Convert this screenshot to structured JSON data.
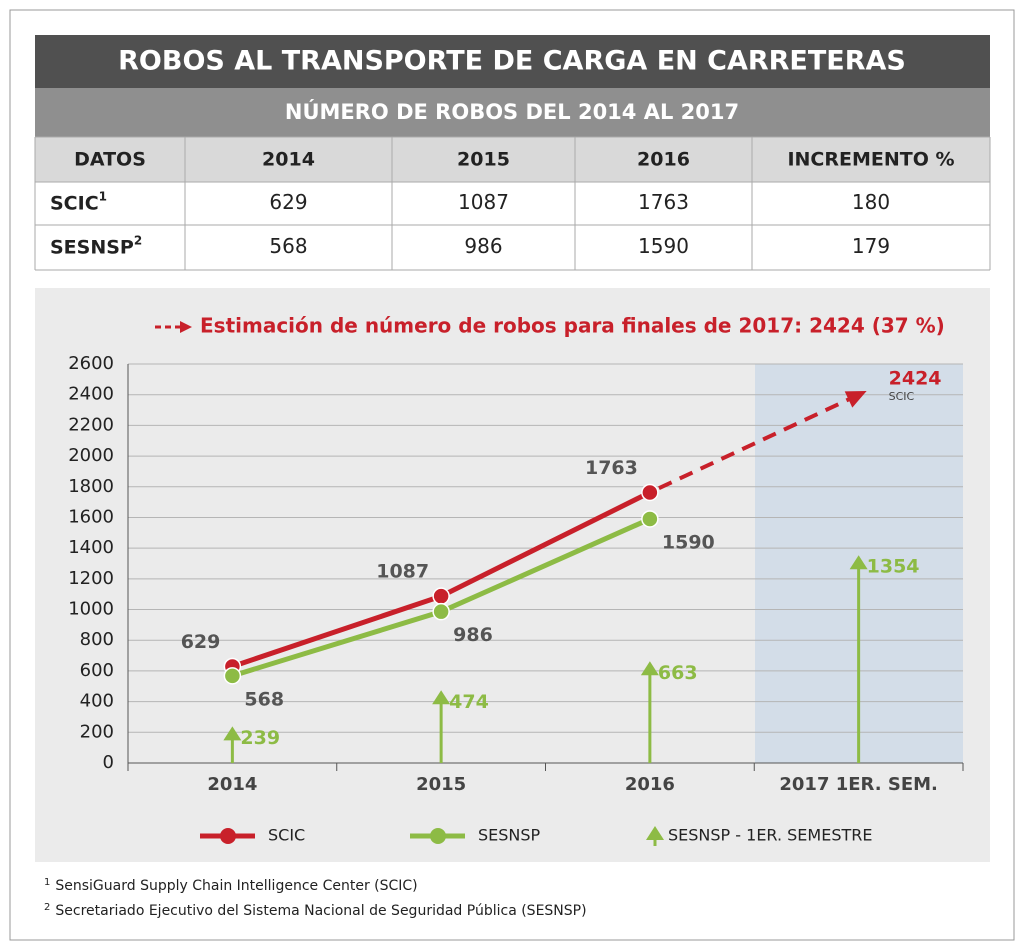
{
  "header": {
    "title": "ROBOS AL TRANSPORTE DE CARGA EN CARRETERAS",
    "subtitle": "NÚMERO DE ROBOS DEL 2014 AL 2017"
  },
  "table": {
    "columns": [
      "DATOS",
      "2014",
      "2015",
      "2016",
      "INCREMENTO %"
    ],
    "rows": [
      {
        "label": "SCIC",
        "note": "1",
        "cells": [
          629,
          1087,
          1763,
          180
        ]
      },
      {
        "label": "SESNSP",
        "note": "2",
        "cells": [
          568,
          986,
          1590,
          179
        ]
      }
    ]
  },
  "chart_data": {
    "type": "line",
    "annotation": "Estimación de número de robos para finales de 2017: 2424 (37 %)",
    "categories": [
      "2014",
      "2015",
      "2016",
      "2017 1ER. SEM."
    ],
    "ylim": [
      0,
      2600
    ],
    "yticks": [
      0,
      200,
      400,
      600,
      800,
      1000,
      1200,
      1400,
      1600,
      1800,
      2000,
      2200,
      2400,
      2600
    ],
    "grid": true,
    "series": [
      {
        "name": "SCIC",
        "color": "#c8202a",
        "values": [
          629,
          1087,
          1763,
          null
        ]
      },
      {
        "name": "SESNSP",
        "color": "#8dbb45",
        "values": [
          568,
          986,
          1590,
          null
        ]
      },
      {
        "name": "SESNSP - 1ER. SEMESTRE",
        "color": "#8dbb45",
        "kind": "arrow",
        "values": [
          239,
          474,
          663,
          1354
        ]
      }
    ],
    "estimate": {
      "value": 2424,
      "note": "SCIC",
      "color": "#c8202a"
    }
  },
  "footnotes": [
    {
      "mark": "1",
      "text": "SensiGuard Supply Chain Intelligence Center (SCIC)"
    },
    {
      "mark": "2",
      "text": "Secretariado Ejecutivo del Sistema Nacional de Seguridad Pública (SESNSP)"
    }
  ]
}
